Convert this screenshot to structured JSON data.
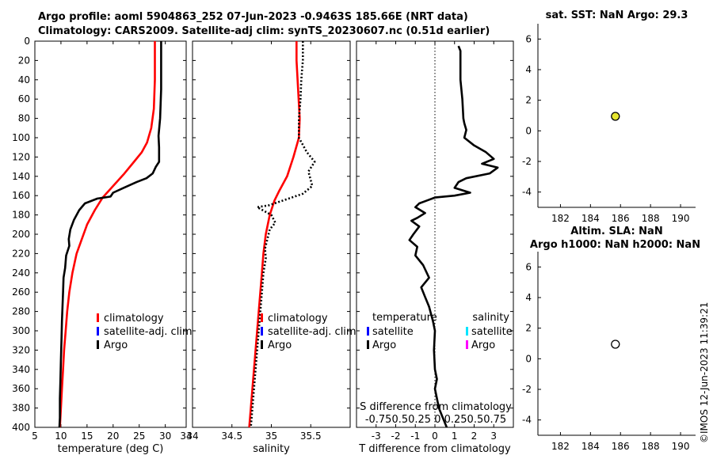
{
  "title_line1": "Argo profile: aoml 5904863_252 07-Jun-2023 -0.9463S 185.66E (NRT data)",
  "title_line2": "Climatology: CARS2009. Satellite-adj clim: synTS_20230607.nc (0.51d earlier)",
  "credit": "©IMOS 12-Jun-2023 11:39:21",
  "colors": {
    "climatology": "#ff0000",
    "satellite_clim": "#0000ff",
    "argo": "#000000",
    "sst_marker": "#e6e62e",
    "sal_satellite": "#00e5ff",
    "sal_argo": "#ff00ff",
    "axis": "#000000",
    "panel_bg": "#ffffff"
  },
  "depth_axis": {
    "ticks": [
      0,
      20,
      40,
      60,
      80,
      100,
      120,
      140,
      160,
      180,
      200,
      220,
      240,
      260,
      280,
      300,
      320,
      340,
      360,
      380,
      400
    ],
    "ylim": [
      0,
      400
    ]
  },
  "chart_data": [
    {
      "type": "line",
      "name": "temperature-panel",
      "xlabel": "temperature (deg C)",
      "xlim": [
        5,
        34
      ],
      "xticks": [
        5,
        10,
        15,
        20,
        25,
        30,
        34
      ],
      "ylim": [
        400,
        0
      ],
      "legend": [
        "climatology",
        "satellite-adj. clim",
        "Argo"
      ],
      "legend_placement": "lower-right",
      "series": [
        {
          "name": "climatology",
          "style": "solid",
          "color": "#ff0000",
          "points": [
            [
              28.0,
              0
            ],
            [
              28.0,
              40
            ],
            [
              27.8,
              70
            ],
            [
              27.3,
              90
            ],
            [
              26.5,
              105
            ],
            [
              25.5,
              115
            ],
            [
              24.0,
              125
            ],
            [
              22.0,
              138
            ],
            [
              20.0,
              150
            ],
            [
              18.0,
              162
            ],
            [
              16.5,
              175
            ],
            [
              15.0,
              190
            ],
            [
              14.0,
              205
            ],
            [
              13.0,
              220
            ],
            [
              12.2,
              240
            ],
            [
              11.6,
              260
            ],
            [
              11.2,
              280
            ],
            [
              10.9,
              300
            ],
            [
              10.6,
              320
            ],
            [
              10.4,
              340
            ],
            [
              10.2,
              360
            ],
            [
              10.0,
              380
            ],
            [
              9.8,
              400
            ]
          ]
        },
        {
          "name": "Argo",
          "style": "solid",
          "color": "#000000",
          "points": [
            [
              29.2,
              0
            ],
            [
              29.2,
              50
            ],
            [
              29.0,
              80
            ],
            [
              28.7,
              98
            ],
            [
              28.8,
              110
            ],
            [
              28.8,
              125
            ],
            [
              28.2,
              130
            ],
            [
              27.6,
              137
            ],
            [
              26.4,
              142
            ],
            [
              24.5,
              146
            ],
            [
              22.0,
              152
            ],
            [
              20.0,
              157
            ],
            [
              19.5,
              161
            ],
            [
              17.0,
              163
            ],
            [
              14.6,
              168
            ],
            [
              13.5,
              175
            ],
            [
              12.5,
              185
            ],
            [
              11.8,
              195
            ],
            [
              11.5,
              205
            ],
            [
              11.6,
              212
            ],
            [
              11.0,
              222
            ],
            [
              10.8,
              235
            ],
            [
              10.5,
              245
            ],
            [
              10.4,
              260
            ],
            [
              10.3,
              275
            ],
            [
              10.2,
              290
            ],
            [
              10.1,
              310
            ],
            [
              10.0,
              330
            ],
            [
              9.9,
              350
            ],
            [
              9.8,
              370
            ],
            [
              9.8,
              390
            ],
            [
              9.7,
              400
            ]
          ]
        }
      ]
    },
    {
      "type": "line",
      "name": "salinity-panel",
      "xlabel": "salinity",
      "xlim": [
        34,
        36
      ],
      "xticks": [
        34,
        34.5,
        35,
        35.5
      ],
      "xticklabels": [
        "34",
        "34.5",
        "35",
        "35.5"
      ],
      "ylim": [
        400,
        0
      ],
      "legend": [
        "climatology",
        "satellite-adj. clim",
        "Argo"
      ],
      "legend_placement": "lower-right",
      "series": [
        {
          "name": "climatology",
          "style": "solid",
          "color": "#ff0000",
          "points": [
            [
              35.32,
              0
            ],
            [
              35.32,
              20
            ],
            [
              35.34,
              50
            ],
            [
              35.36,
              80
            ],
            [
              35.35,
              100
            ],
            [
              35.28,
              120
            ],
            [
              35.2,
              140
            ],
            [
              35.1,
              155
            ],
            [
              35.04,
              165
            ],
            [
              34.98,
              180
            ],
            [
              34.93,
              200
            ],
            [
              34.9,
              220
            ],
            [
              34.88,
              240
            ],
            [
              34.86,
              260
            ],
            [
              34.84,
              280
            ],
            [
              34.82,
              300
            ],
            [
              34.8,
              320
            ],
            [
              34.78,
              340
            ],
            [
              34.76,
              360
            ],
            [
              34.74,
              380
            ],
            [
              34.72,
              400
            ]
          ]
        },
        {
          "name": "Argo",
          "style": "dotted",
          "color": "#000000",
          "points": [
            [
              35.4,
              0
            ],
            [
              35.4,
              20
            ],
            [
              35.38,
              40
            ],
            [
              35.37,
              60
            ],
            [
              35.35,
              80
            ],
            [
              35.35,
              100
            ],
            [
              35.45,
              115
            ],
            [
              35.55,
              125
            ],
            [
              35.47,
              135
            ],
            [
              35.52,
              150
            ],
            [
              35.4,
              158
            ],
            [
              35.15,
              165
            ],
            [
              34.97,
              170
            ],
            [
              34.82,
              172
            ],
            [
              35.0,
              180
            ],
            [
              35.05,
              188
            ],
            [
              34.98,
              195
            ],
            [
              34.95,
              205
            ],
            [
              34.92,
              215
            ],
            [
              34.93,
              225
            ],
            [
              34.9,
              240
            ],
            [
              34.88,
              260
            ],
            [
              34.86,
              280
            ],
            [
              34.84,
              300
            ],
            [
              34.82,
              320
            ],
            [
              34.8,
              340
            ],
            [
              34.78,
              360
            ],
            [
              34.76,
              380
            ],
            [
              34.74,
              400
            ]
          ]
        }
      ]
    },
    {
      "type": "line",
      "name": "difference-panel",
      "xlabel": "T difference from climatology",
      "top_label": "S difference from climatology",
      "xlim": [
        -4,
        4
      ],
      "xticks": [
        -3,
        -2,
        -1,
        0,
        1,
        2,
        3
      ],
      "top_ticklabels": "-0.750.50.25 0  0.250.50.75",
      "ylim": [
        400,
        0
      ],
      "zero_line": "dotted",
      "legend_temperature_heading": "temperature",
      "legend_salinity_heading": "salinity",
      "legend_temperature": [
        "satellite",
        "Argo"
      ],
      "legend_salinity": [
        "satellite",
        "Argo"
      ],
      "series": [
        {
          "name": "T difference Argo",
          "style": "solid",
          "color": "#000000",
          "points": [
            [
              1.2,
              5
            ],
            [
              1.3,
              10
            ],
            [
              1.3,
              40
            ],
            [
              1.4,
              60
            ],
            [
              1.45,
              80
            ],
            [
              1.5,
              85
            ],
            [
              1.6,
              92
            ],
            [
              1.5,
              100
            ],
            [
              2.0,
              108
            ],
            [
              2.6,
              115
            ],
            [
              3.0,
              122
            ],
            [
              2.4,
              127
            ],
            [
              3.2,
              131
            ],
            [
              2.8,
              137
            ],
            [
              1.6,
              142
            ],
            [
              1.2,
              146
            ],
            [
              1.0,
              152
            ],
            [
              1.8,
              157
            ],
            [
              1.0,
              160
            ],
            [
              0.0,
              162
            ],
            [
              -0.4,
              165
            ],
            [
              -0.8,
              168
            ],
            [
              -1.0,
              172
            ],
            [
              -0.5,
              178
            ],
            [
              -0.9,
              183
            ],
            [
              -1.2,
              186
            ],
            [
              -0.8,
              192
            ],
            [
              -1.1,
              200
            ],
            [
              -1.3,
              206
            ],
            [
              -0.9,
              213
            ],
            [
              -1.0,
              222
            ],
            [
              -0.6,
              232
            ],
            [
              -0.3,
              245
            ],
            [
              -0.7,
              255
            ],
            [
              -0.5,
              265
            ],
            [
              -0.3,
              275
            ],
            [
              -0.1,
              290
            ],
            [
              0,
              300
            ],
            [
              -0.05,
              320
            ],
            [
              0,
              340
            ],
            [
              0.1,
              350
            ],
            [
              0,
              360
            ],
            [
              0.1,
              370
            ],
            [
              0.2,
              380
            ],
            [
              0.4,
              390
            ],
            [
              0.6,
              400
            ]
          ]
        }
      ]
    },
    {
      "type": "scatter",
      "name": "sst-panel",
      "title": "sat. SST: NaN Argo: 29.3",
      "xlim": [
        180.5,
        191
      ],
      "xticks": [
        182,
        184,
        186,
        188,
        190
      ],
      "ylim": [
        -5,
        7
      ],
      "yticks": [
        -4,
        -2,
        0,
        2,
        4,
        6
      ],
      "points": [
        {
          "x": 185.66,
          "y": 0.95,
          "fill": "#e6e62e"
        }
      ]
    },
    {
      "type": "scatter",
      "name": "sla-panel",
      "title_line1": "Altim. SLA: NaN",
      "title_line2": "Argo h1000: NaN h2000: NaN",
      "xlim": [
        180.5,
        191
      ],
      "xticks": [
        182,
        184,
        186,
        188,
        190
      ],
      "ylim": [
        -5,
        7
      ],
      "yticks": [
        -4,
        -2,
        0,
        2,
        4,
        6
      ],
      "points": [
        {
          "x": 185.66,
          "y": 0.95,
          "fill": "#ffffff"
        }
      ]
    }
  ]
}
